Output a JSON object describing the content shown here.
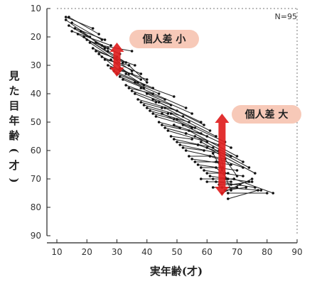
{
  "chart_data": {
    "type": "line",
    "xlabel": "実年齢(才)",
    "ylabel": "見た目年齢(才)",
    "n_label": "N=95",
    "xlim": [
      10,
      90
    ],
    "ylim": [
      10,
      90
    ],
    "y_inverted": true,
    "x_ticks": [
      10,
      20,
      30,
      40,
      50,
      60,
      70,
      80,
      90
    ],
    "y_ticks": [
      10,
      20,
      30,
      40,
      50,
      60,
      70,
      80,
      90
    ],
    "grid": false,
    "annotations": [
      {
        "text": "個人差 小",
        "at_x": 30,
        "range": [
          22,
          34
        ],
        "color": "#e02020",
        "badge": "#f7c9b8"
      },
      {
        "text": "個人差 大",
        "at_x": 65,
        "range": [
          47,
          76
        ],
        "color": "#e02020",
        "badge": "#f7c9b8"
      }
    ],
    "segments": [
      [
        [
          13,
          13
        ],
        [
          22,
          17
        ]
      ],
      [
        [
          14,
          13
        ],
        [
          24,
          19
        ]
      ],
      [
        [
          13,
          14
        ],
        [
          21,
          20
        ]
      ],
      [
        [
          15,
          15
        ],
        [
          25,
          21
        ]
      ],
      [
        [
          14,
          16
        ],
        [
          27,
          24
        ]
      ],
      [
        [
          16,
          17
        ],
        [
          26,
          21
        ]
      ],
      [
        [
          15,
          18
        ],
        [
          28,
          23
        ]
      ],
      [
        [
          17,
          19
        ],
        [
          30,
          27
        ]
      ],
      [
        [
          18,
          18
        ],
        [
          26,
          24
        ]
      ],
      [
        [
          19,
          20
        ],
        [
          32,
          29
        ]
      ],
      [
        [
          20,
          21
        ],
        [
          27,
          24
        ]
      ],
      [
        [
          21,
          22
        ],
        [
          35,
          32
        ]
      ],
      [
        [
          22,
          24
        ],
        [
          30,
          28
        ]
      ],
      [
        [
          23,
          25
        ],
        [
          36,
          30
        ]
      ],
      [
        [
          24,
          26
        ],
        [
          31,
          32
        ]
      ],
      [
        [
          25,
          27
        ],
        [
          38,
          33
        ]
      ],
      [
        [
          26,
          28
        ],
        [
          34,
          30
        ]
      ],
      [
        [
          27,
          30
        ],
        [
          40,
          35
        ]
      ],
      [
        [
          28,
          31
        ],
        [
          35,
          33
        ]
      ],
      [
        [
          29,
          32
        ],
        [
          42,
          38
        ]
      ],
      [
        [
          30,
          33
        ],
        [
          37,
          36
        ]
      ],
      [
        [
          31,
          34
        ],
        [
          44,
          40
        ]
      ],
      [
        [
          32,
          35
        ],
        [
          39,
          38
        ]
      ],
      [
        [
          33,
          37
        ],
        [
          46,
          42
        ]
      ],
      [
        [
          34,
          38
        ],
        [
          42,
          40
        ]
      ],
      [
        [
          35,
          39
        ],
        [
          48,
          44
        ]
      ],
      [
        [
          36,
          40
        ],
        [
          43,
          43
        ]
      ],
      [
        [
          37,
          42
        ],
        [
          50,
          46
        ]
      ],
      [
        [
          38,
          43
        ],
        [
          45,
          45
        ]
      ],
      [
        [
          39,
          44
        ],
        [
          52,
          48
        ]
      ],
      [
        [
          40,
          45
        ],
        [
          47,
          47
        ]
      ],
      [
        [
          41,
          46
        ],
        [
          54,
          50
        ]
      ],
      [
        [
          42,
          47
        ],
        [
          49,
          49
        ]
      ],
      [
        [
          43,
          48
        ],
        [
          56,
          52
        ]
      ],
      [
        [
          44,
          50
        ],
        [
          51,
          52
        ]
      ],
      [
        [
          45,
          51
        ],
        [
          58,
          54
        ]
      ],
      [
        [
          46,
          52
        ],
        [
          53,
          54
        ]
      ],
      [
        [
          47,
          53
        ],
        [
          60,
          57
        ]
      ],
      [
        [
          48,
          55
        ],
        [
          55,
          56
        ]
      ],
      [
        [
          49,
          56
        ],
        [
          62,
          59
        ]
      ],
      [
        [
          50,
          57
        ],
        [
          57,
          58
        ]
      ],
      [
        [
          51,
          58
        ],
        [
          64,
          61
        ]
      ],
      [
        [
          52,
          59
        ],
        [
          59,
          60
        ]
      ],
      [
        [
          53,
          60
        ],
        [
          66,
          63
        ]
      ],
      [
        [
          54,
          62
        ],
        [
          61,
          62
        ]
      ],
      [
        [
          55,
          63
        ],
        [
          68,
          65
        ]
      ],
      [
        [
          56,
          64
        ],
        [
          63,
          64
        ]
      ],
      [
        [
          57,
          65
        ],
        [
          70,
          67
        ]
      ],
      [
        [
          58,
          66
        ],
        [
          65,
          66
        ]
      ],
      [
        [
          59,
          67
        ],
        [
          72,
          69
        ]
      ],
      [
        [
          60,
          68
        ],
        [
          67,
          68
        ]
      ],
      [
        [
          61,
          69
        ],
        [
          74,
          71
        ]
      ],
      [
        [
          62,
          70
        ],
        [
          69,
          70
        ]
      ],
      [
        [
          63,
          71
        ],
        [
          76,
          73
        ]
      ],
      [
        [
          64,
          72
        ],
        [
          71,
          72
        ]
      ],
      [
        [
          65,
          73
        ],
        [
          78,
          74
        ]
      ],
      [
        [
          66,
          74
        ],
        [
          73,
          73
        ]
      ],
      [
        [
          67,
          75
        ],
        [
          80,
          75
        ]
      ],
      [
        [
          68,
          72
        ],
        [
          75,
          71
        ]
      ],
      [
        [
          69,
          70
        ],
        [
          82,
          75
        ]
      ],
      [
        [
          36,
          36
        ],
        [
          49,
          41
        ]
      ],
      [
        [
          38,
          38
        ],
        [
          53,
          45
        ]
      ],
      [
        [
          40,
          40
        ],
        [
          55,
          47
        ]
      ],
      [
        [
          42,
          42
        ],
        [
          58,
          50
        ]
      ],
      [
        [
          44,
          43
        ],
        [
          59,
          51
        ]
      ],
      [
        [
          46,
          45
        ],
        [
          61,
          53
        ]
      ],
      [
        [
          48,
          47
        ],
        [
          63,
          55
        ]
      ],
      [
        [
          50,
          49
        ],
        [
          66,
          57
        ]
      ],
      [
        [
          52,
          51
        ],
        [
          68,
          59
        ]
      ],
      [
        [
          54,
          53
        ],
        [
          70,
          62
        ]
      ],
      [
        [
          56,
          55
        ],
        [
          72,
          64
        ]
      ],
      [
        [
          58,
          57
        ],
        [
          74,
          66
        ]
      ],
      [
        [
          60,
          59
        ],
        [
          76,
          68
        ]
      ],
      [
        [
          45,
          47
        ],
        [
          55,
          52
        ]
      ],
      [
        [
          49,
          51
        ],
        [
          60,
          55
        ]
      ],
      [
        [
          53,
          54
        ],
        [
          64,
          58
        ]
      ],
      [
        [
          57,
          58
        ],
        [
          68,
          62
        ]
      ],
      [
        [
          61,
          62
        ],
        [
          72,
          66
        ]
      ],
      [
        [
          62,
          61
        ],
        [
          65,
          67
        ]
      ],
      [
        [
          64,
          60
        ],
        [
          66,
          68
        ]
      ],
      [
        [
          66,
          63
        ],
        [
          70,
          69
        ]
      ],
      [
        [
          63,
          66
        ],
        [
          67,
          70
        ]
      ],
      [
        [
          64,
          64
        ],
        [
          68,
          74
        ]
      ],
      [
        [
          62,
          73
        ],
        [
          70,
          73
        ]
      ],
      [
        [
          60,
          71
        ],
        [
          68,
          71
        ]
      ],
      [
        [
          65,
          75
        ],
        [
          75,
          70
        ]
      ],
      [
        [
          67,
          77
        ],
        [
          77,
          74
        ]
      ],
      [
        [
          58,
          70
        ],
        [
          66,
          70
        ]
      ],
      [
        [
          25,
          23
        ],
        [
          35,
          25
        ]
      ],
      [
        [
          27,
          25
        ],
        [
          33,
          29
        ]
      ],
      [
        [
          23,
          22
        ],
        [
          31,
          26
        ]
      ],
      [
        [
          28,
          28
        ],
        [
          34,
          33
        ]
      ],
      [
        [
          31,
          31
        ],
        [
          38,
          35
        ]
      ],
      [
        [
          33,
          33
        ],
        [
          39,
          37
        ]
      ],
      [
        [
          34,
          30
        ],
        [
          40,
          36
        ]
      ]
    ]
  }
}
